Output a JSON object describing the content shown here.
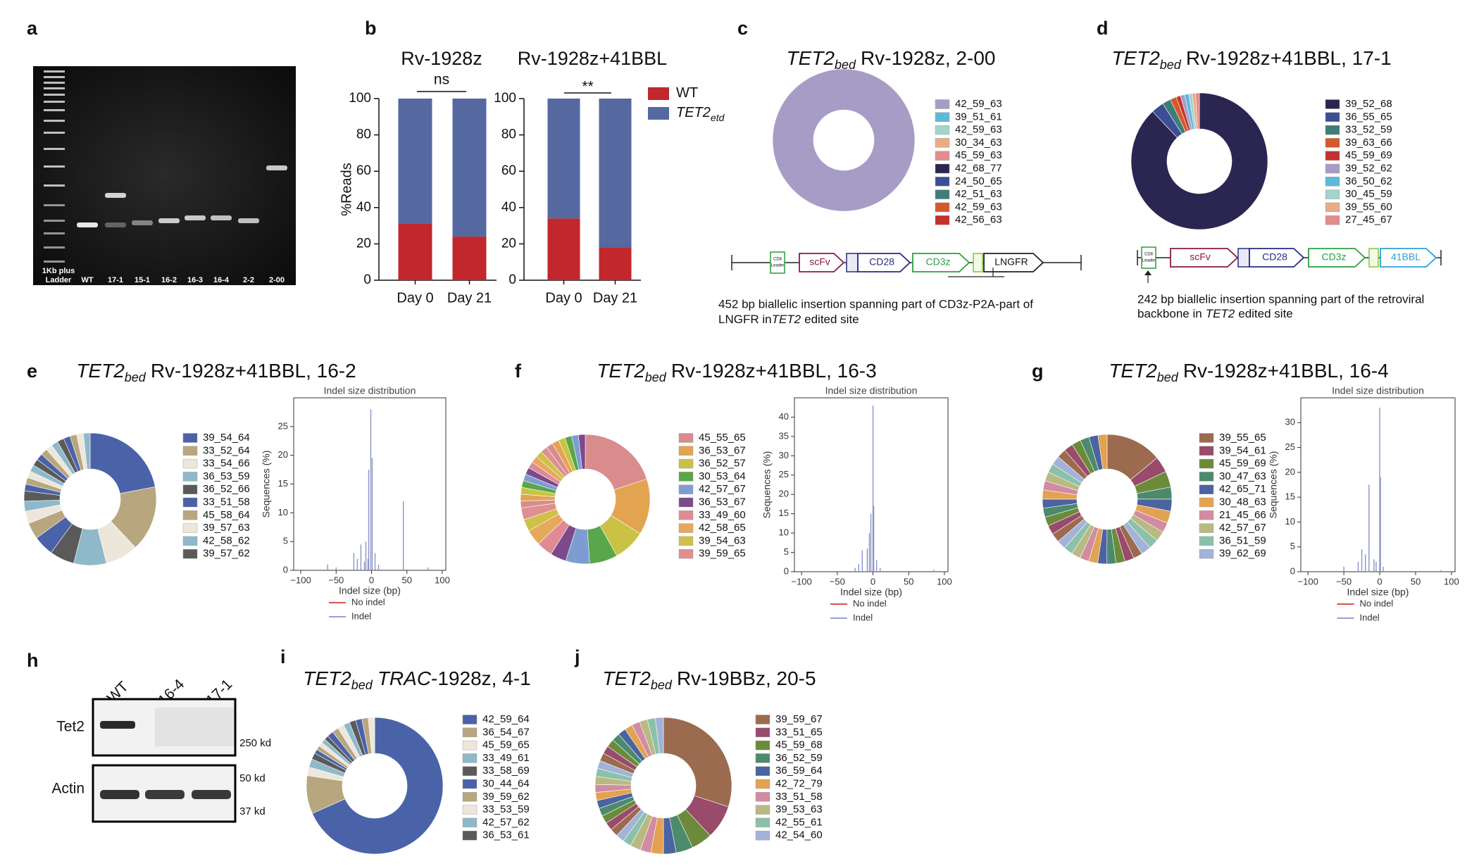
{
  "panels": [
    "a",
    "b",
    "c",
    "d",
    "e",
    "f",
    "g",
    "h",
    "i",
    "j"
  ],
  "gel": {
    "ladder": [
      "1Kb plus",
      "Ladder"
    ],
    "lanes": [
      "WT",
      "17-1",
      "15-1",
      "16-2",
      "16-3",
      "16-4",
      "2-2",
      "2-00"
    ]
  },
  "constructs": [
    {
      "leader": [
        "CD8",
        "Leader"
      ],
      "parts": [
        "scFv",
        "CD28",
        "CD3z",
        "LNGFR"
      ],
      "caption_line1": "452 bp biallelic insertion spanning part of CD3z-P2A-part of",
      "caption_line2": "LNGFR in",
      "caption_gene": "TET2",
      "caption_end": "edited site"
    },
    {
      "leader": [
        "CD8",
        "Leader"
      ],
      "parts": [
        "scFv",
        "CD28",
        "CD3z",
        "41BBL"
      ],
      "caption_line1": "242 bp biallelic insertion spanning part of the retroviral",
      "caption_line2": "backbone in",
      "caption_gene": "TET2",
      "caption_end": "edited site"
    }
  ],
  "blot": {
    "lanes": [
      "WT",
      "16-4",
      "17-1"
    ],
    "rows": [
      "Tet2",
      "Actin"
    ],
    "markers": [
      "250 kd",
      "50 kd",
      "37 kd"
    ]
  },
  "chart_data": [
    {
      "type": "bar",
      "stacked": true,
      "title": "Rv-1928z",
      "annotation": "ns",
      "ylabel": "%Reads",
      "categories": [
        "Day 0",
        "Day 21"
      ],
      "series": [
        {
          "color": "#c1272d",
          "values": [
            31,
            24
          ]
        },
        {
          "color": "#5568a0",
          "values": [
            69,
            76
          ]
        }
      ],
      "ylim": [
        0,
        100
      ],
      "yticks": [
        0,
        20,
        40,
        60,
        80,
        100
      ]
    },
    {
      "type": "bar",
      "stacked": true,
      "title": "Rv-1928z+41BBL",
      "annotation": "**",
      "legend": "right",
      "categories": [
        "Day 0",
        "Day 21"
      ],
      "series": [
        {
          "name": "WT",
          "color": "#c1272d",
          "values": [
            34,
            18
          ]
        },
        {
          "name": "TET2",
          "name_sub": "etd",
          "color": "#5568a0",
          "values": [
            66,
            82
          ]
        }
      ],
      "ylim": [
        0,
        100
      ],
      "yticks": [
        0,
        20,
        40,
        60,
        80,
        100
      ]
    },
    {
      "type": "pie",
      "title_gene": "TET2",
      "title_sub": "bed",
      "title": "Rv-1928z, 2-00",
      "categories": [
        "42_59_63",
        "39_51_61",
        "42_59_63",
        "30_34_63",
        "45_59_63",
        "42_68_77",
        "24_50_65",
        "42_51_63",
        "42_59_63",
        "42_56_63"
      ],
      "values": [
        100,
        0,
        0,
        0,
        0,
        0,
        0,
        0,
        0,
        0
      ],
      "colors": [
        "#a79cc6",
        "#5bbad9",
        "#a2d4cc",
        "#e8ac86",
        "#e28c8c",
        "#2b2552",
        "#3c4f95",
        "#3e7e78",
        "#d5592b",
        "#c7302e"
      ]
    },
    {
      "type": "pie",
      "title_gene": "TET2",
      "title_sub": "bed",
      "title": "Rv-1928z+41BBL, 17-1",
      "categories": [
        "39_52_68",
        "36_55_65",
        "33_52_59",
        "39_63_66",
        "45_59_69",
        "39_52_62",
        "36_50_62",
        "30_45_59",
        "39_55_60",
        "27_45_67"
      ],
      "values": [
        88,
        3,
        2,
        1.5,
        1,
        1,
        1,
        0.8,
        0.8,
        0.9
      ],
      "colors": [
        "#2b2552",
        "#3c4f95",
        "#3e7e78",
        "#d5592b",
        "#c7302e",
        "#a79cc6",
        "#5bbad9",
        "#a2d4cc",
        "#e8ac86",
        "#e28c8c"
      ]
    },
    {
      "type": "pie",
      "title_gene": "TET2",
      "title_sub": "bed",
      "title": "Rv-1928z+41BBL, 16-2",
      "categories": [
        "39_54_64",
        "33_52_64",
        "33_54_66",
        "36_53_59",
        "36_52_66",
        "33_51_58",
        "45_58_64",
        "39_57_63",
        "42_58_62",
        "39_57_62",
        null,
        null,
        null,
        null,
        null,
        null,
        null,
        null,
        null,
        null,
        null,
        null,
        null,
        null
      ],
      "values": [
        22,
        16,
        8,
        8,
        6,
        5,
        4,
        3,
        2.5,
        2.5,
        1.64,
        1.64,
        1.64,
        1.64,
        1.64,
        1.64,
        1.64,
        1.64,
        1.64,
        1.64,
        1.64,
        1.64,
        1.64,
        1.64
      ],
      "colors": [
        "#4a62a8",
        "#b8a67f",
        "#ece7da",
        "#8fb9ca",
        "#5a5a5a"
      ]
    },
    {
      "type": "spikes",
      "title": "Indel size distribution",
      "xlabel": "Indel size (bp)",
      "ylabel": "Sequences (%)",
      "xlim": [
        -110,
        105
      ],
      "xticks": [
        {
          "value": -100,
          "label": "−100"
        },
        {
          "value": -50,
          "label": "−50"
        },
        0,
        50,
        100
      ],
      "ylim": [
        0,
        30
      ],
      "yticks": [
        0,
        5,
        10,
        15,
        20,
        25
      ],
      "series": [
        {
          "name": "No indel",
          "color": "#d03a3a",
          "x": [],
          "values": []
        },
        {
          "name": "Indel",
          "color": "#8a94c8",
          "x": [
            -62,
            -50,
            -25,
            -20,
            -15,
            -10,
            -8,
            -5,
            -4,
            -1,
            1,
            5,
            10,
            45,
            80
          ],
          "values": [
            1,
            0.5,
            3,
            2,
            4.5,
            1.5,
            5,
            2,
            17.5,
            28,
            19.5,
            3,
            1,
            12,
            0.5
          ]
        }
      ]
    },
    {
      "type": "pie",
      "title_gene": "TET2",
      "title_sub": "bed",
      "title": "Rv-1928z+41BBL, 16-3",
      "categories": [
        "45_55_65",
        "36_53_67",
        "36_52_57",
        "30_53_64",
        "42_57_67",
        "36_53_67",
        "33_49_60",
        "42_58_65",
        "39_54_63",
        "39_59_65",
        null,
        null,
        null,
        null,
        null,
        null,
        null,
        null,
        null,
        null,
        null,
        null,
        null,
        null,
        null,
        null
      ],
      "values": [
        20,
        14,
        8,
        7,
        6,
        4,
        4,
        4,
        3,
        3,
        1.7,
        1.7,
        1.7,
        1.7,
        1.7,
        1.7,
        1.7,
        1.7,
        1.7,
        1.7,
        1.7,
        1.7,
        1.7,
        1.7,
        1.7,
        1.7
      ],
      "colors": [
        "#d98c8c",
        "#e3a452",
        "#c9c245",
        "#5aa64b",
        "#7d9dd2",
        "#7b4a8c",
        "#e08a96",
        "#e6a85a",
        "#cfc04a",
        "#de9090"
      ]
    },
    {
      "type": "spikes",
      "title": "Indel size distribution",
      "xlabel": "Indel size (bp)",
      "ylabel": "Sequences (%)",
      "xlim": [
        -110,
        105
      ],
      "xticks": [
        {
          "value": -100,
          "label": "−100"
        },
        {
          "value": -50,
          "label": "−50"
        },
        0,
        50,
        100
      ],
      "ylim": [
        0,
        45
      ],
      "yticks": [
        0,
        5,
        10,
        15,
        20,
        25,
        30,
        35,
        40
      ],
      "series": [
        {
          "name": "No indel",
          "color": "#d03a3a",
          "x": [],
          "values": []
        },
        {
          "name": "Indel",
          "color": "#8a94c8",
          "x": [
            -25,
            -20,
            -15,
            -8,
            -5,
            -3,
            0,
            1,
            5,
            10,
            85
          ],
          "values": [
            1,
            2,
            5.5,
            6,
            10,
            15,
            43,
            17,
            3,
            1,
            0.5
          ]
        }
      ]
    },
    {
      "type": "pie",
      "title_gene": "TET2",
      "title_sub": "bed",
      "title": "Rv-1928z+41BBL, 16-4",
      "categories": [
        "39_55_65",
        "39_54_61",
        "45_59_69",
        "30_47_63",
        "42_65_71",
        "30_48_63",
        "21_45_66",
        "42_57_67",
        "36_51_59",
        "39_62_69",
        null,
        null,
        null,
        null,
        null,
        null,
        null,
        null,
        null,
        null,
        null,
        null,
        null,
        null,
        null,
        null,
        null,
        null,
        null,
        null,
        null,
        null,
        null,
        null,
        null,
        null
      ],
      "values": [
        14,
        4,
        4,
        3,
        3,
        3,
        2.5,
        2.5,
        2.5,
        2.5,
        2.27,
        2.27,
        2.27,
        2.27,
        2.27,
        2.27,
        2.27,
        2.27,
        2.27,
        2.27,
        2.27,
        2.27,
        2.27,
        2.27,
        2.27,
        2.27,
        2.27,
        2.27,
        2.27,
        2.27,
        2.27,
        2.27,
        2.27,
        2.27,
        2.27,
        2.27
      ],
      "colors": [
        "#9c6a4e",
        "#9a4a6b",
        "#6b8b3b",
        "#4b8b6c",
        "#4b63a1",
        "#e2a252",
        "#d28ba2",
        "#b9b982",
        "#8bc1a9",
        "#a2b2d9"
      ]
    },
    {
      "type": "spikes",
      "title": "Indel size distribution",
      "xlabel": "Indel size (bp)",
      "ylabel": "Sequences (%)",
      "xlim": [
        -110,
        105
      ],
      "xticks": [
        {
          "value": -100,
          "label": "−100"
        },
        {
          "value": -50,
          "label": "−50"
        },
        0,
        50,
        100
      ],
      "ylim": [
        0,
        35
      ],
      "yticks": [
        0,
        5,
        10,
        15,
        20,
        25,
        30
      ],
      "series": [
        {
          "name": "No indel",
          "color": "#d03a3a",
          "x": [],
          "values": []
        },
        {
          "name": "Indel",
          "color": "#8a94c8",
          "x": [
            -50,
            -30,
            -25,
            -20,
            -15,
            -8,
            -5,
            0,
            1,
            5,
            85
          ],
          "values": [
            1,
            2,
            4.5,
            3.5,
            17.5,
            2.5,
            2,
            33,
            19,
            1,
            0.3
          ]
        }
      ]
    },
    {
      "type": "pie",
      "title_gene": "TET2",
      "title_sub": "bed",
      "title_italic": "TRAC",
      "title": "-1928z, 4-1",
      "categories": [
        "42_59_64",
        "36_54_67",
        "45_59_65",
        "33_49_61",
        "33_58_69",
        "30_44_64",
        "39_59_62",
        "33_53_59",
        "42_57_62",
        "36_53_61",
        null,
        null,
        null,
        null,
        null,
        null,
        null,
        null
      ],
      "values": [
        68,
        9,
        2,
        2,
        1.5,
        1,
        1,
        1,
        1,
        1,
        1.5,
        1.5,
        1.5,
        1.5,
        1.5,
        1.5,
        1.5,
        1.5
      ],
      "colors": [
        "#4a62a8",
        "#b8a67f",
        "#ece7da",
        "#8fb9ca",
        "#5a5a5a"
      ]
    },
    {
      "type": "pie",
      "title_gene": "TET2",
      "title_sub": "bed",
      "title": "Rv-19BBz, 20-5",
      "categories": [
        "39_59_67",
        "33_51_65",
        "45_59_68",
        "36_52_59",
        "36_59_64",
        "42_72_79",
        "33_51_58",
        "39_53_63",
        "42_55_61",
        "42_54_60",
        null,
        null,
        null,
        null,
        null,
        null,
        null,
        null,
        null,
        null,
        null,
        null,
        null,
        null,
        null,
        null,
        null,
        null,
        null,
        null
      ],
      "values": [
        30,
        8,
        5,
        4,
        3,
        3,
        2.5,
        2.5,
        2,
        2,
        1.9,
        1.9,
        1.9,
        1.9,
        1.9,
        1.9,
        1.9,
        1.9,
        1.9,
        1.9,
        1.9,
        1.9,
        1.9,
        1.9,
        1.9,
        1.9,
        1.9,
        1.9,
        1.9,
        1.9
      ],
      "colors": [
        "#9c6a4e",
        "#9a4a6b",
        "#6b8b3b",
        "#4b8b6c",
        "#4b63a1",
        "#e2a252",
        "#d28ba2",
        "#b9b982",
        "#8bc1a9",
        "#a2b2d9"
      ]
    }
  ]
}
